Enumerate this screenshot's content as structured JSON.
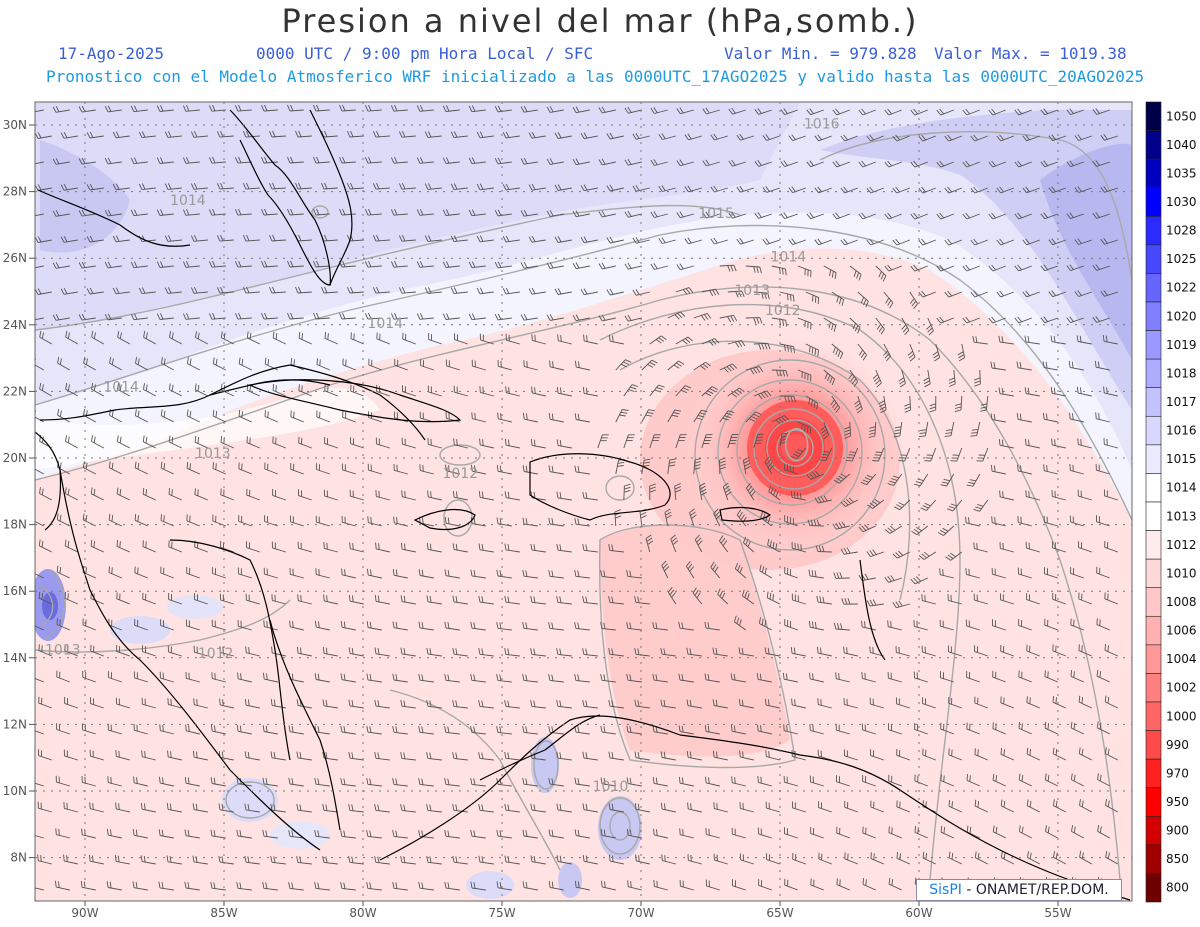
{
  "header": {
    "title": "Presion a nivel del mar (hPa,somb.)",
    "date": "17-Ago-2025",
    "time": "0000 UTC / 9:00 pm Hora Local / SFC",
    "min": "Valor Min. = 979.828",
    "max": "Valor Max. = 1019.38",
    "forecast": "Pronostico con el Modelo Atmosferico WRF inicializado a las 0000UTC_17AGO2025 y valido hasta las  0000UTC_20AGO2025"
  },
  "axes": {
    "lon_labels": [
      "90W",
      "85W",
      "80W",
      "75W",
      "70W",
      "65W",
      "60W",
      "55W"
    ],
    "lat_labels": [
      "30N",
      "28N",
      "26N",
      "24N",
      "22N",
      "20N",
      "18N",
      "16N",
      "14N",
      "12N",
      "10N",
      "8N"
    ]
  },
  "isobar_labels": [
    {
      "text": "1016",
      "lon": -63.5,
      "lat": 29.9
    },
    {
      "text": "1015",
      "lon": -67.3,
      "lat": 27.2
    },
    {
      "text": "1014",
      "lon": -64.7,
      "lat": 25.9
    },
    {
      "text": "1013",
      "lon": -66.0,
      "lat": 24.9
    },
    {
      "text": "1012",
      "lon": -64.9,
      "lat": 24.3
    },
    {
      "text": "1014",
      "lon": -79.2,
      "lat": 23.9
    },
    {
      "text": "1014",
      "lon": -88.7,
      "lat": 22.0
    },
    {
      "text": "1014",
      "lon": -86.3,
      "lat": 27.6
    },
    {
      "text": "1013",
      "lon": -85.4,
      "lat": 20.0
    },
    {
      "text": "1012",
      "lon": -76.5,
      "lat": 19.4
    },
    {
      "text": "1013",
      "lon": -90.8,
      "lat": 14.1
    },
    {
      "text": "1012",
      "lon": -85.3,
      "lat": 14.0
    },
    {
      "text": "1010",
      "lon": -71.1,
      "lat": 10.0
    }
  ],
  "legend": {
    "levels": [
      "1050",
      "1040",
      "1035",
      "1030",
      "1028",
      "1025",
      "1022",
      "1020",
      "1019",
      "1018",
      "1017",
      "1016",
      "1015",
      "1014",
      "1013",
      "1012",
      "1010",
      "1008",
      "1006",
      "1004",
      "1002",
      "1000",
      "990",
      "970",
      "950",
      "900",
      "850",
      "800"
    ],
    "colors": [
      "#00004a",
      "#00008a",
      "#0000c0",
      "#0000ff",
      "#2b2bff",
      "#4848ff",
      "#6666ff",
      "#7f7fff",
      "#9999ff",
      "#adadff",
      "#c2c2ff",
      "#d8d8ff",
      "#ebebff",
      "#ffffff",
      "#ffffff",
      "#ffebeb",
      "#ffd9d9",
      "#ffc7c7",
      "#ffb0b0",
      "#ff9999",
      "#ff8080",
      "#ff6666",
      "#ff4a4a",
      "#ff2020",
      "#ff0000",
      "#d20000",
      "#a00000",
      "#6e0000"
    ]
  },
  "low_center": {
    "lon": -64.4,
    "lat": 20.4
  },
  "credit": {
    "brand": "SisPI",
    "rest": " - ONAMET/REP.DOM."
  }
}
